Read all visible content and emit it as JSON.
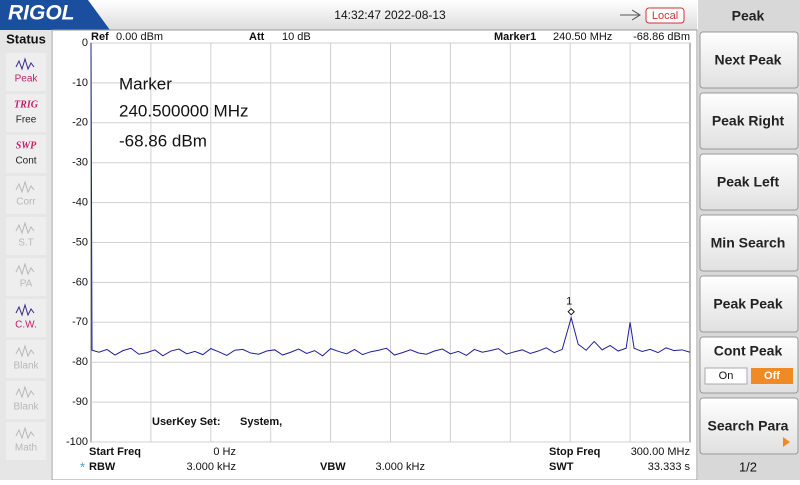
{
  "header": {
    "logo": "RIGOL",
    "datetime": "14:32:47 2022-08-13",
    "local": "Local"
  },
  "status": {
    "title": "Status",
    "items": [
      {
        "label": "Peak",
        "enabled": true
      },
      {
        "tag": "TRIG",
        "label": "Free",
        "enabled": true
      },
      {
        "tag": "SWP",
        "label": "Cont",
        "enabled": true
      },
      {
        "label": "Corr",
        "enabled": false
      },
      {
        "label": "S.T",
        "enabled": false
      },
      {
        "label": "PA",
        "enabled": false
      },
      {
        "label": "C.W.",
        "enabled": true
      },
      {
        "label": "Blank",
        "enabled": false
      },
      {
        "label": "Blank",
        "enabled": false
      },
      {
        "label": "Math",
        "enabled": false
      }
    ]
  },
  "top_info": {
    "ref_label": "Ref",
    "ref_value": "0.00 dBm",
    "att_label": "Att",
    "att_value": "10 dB",
    "marker_label": "Marker1",
    "marker_freq": "240.50 MHz",
    "marker_amp": "-68.86 dBm"
  },
  "marker_box": {
    "title": "Marker",
    "freq": "240.500000 MHz",
    "amp": "-68.86 dBm",
    "number": "1"
  },
  "userkey": {
    "label": "UserKey Set:",
    "value": "System,"
  },
  "bottom": {
    "start_label": "Start Freq",
    "start_value": "0 Hz",
    "stop_label": "Stop Freq",
    "stop_value": "300.00 MHz",
    "rbw_star": "*",
    "rbw_label": "RBW",
    "rbw_value": "3.000 kHz",
    "vbw_label": "VBW",
    "vbw_value": "3.000 kHz",
    "swt_label": "SWT",
    "swt_value": "33.333 s"
  },
  "menu": {
    "title": "Peak",
    "buttons": [
      "Next Peak",
      "Peak Right",
      "Peak Left",
      "Min Search",
      "Peak Peak"
    ],
    "cont_peak": {
      "label": "Cont Peak",
      "on": "On",
      "off": "Off"
    },
    "search_para": "Search Para",
    "page": "1/2"
  },
  "chart_data": {
    "type": "line",
    "color": "#1f1f9a",
    "x": [
      0,
      0.5,
      4,
      8,
      12,
      16,
      20,
      24,
      28,
      32,
      36,
      40,
      44,
      48,
      52,
      56,
      60,
      64,
      68,
      72,
      76,
      80,
      84,
      88,
      92,
      96,
      100,
      104,
      108,
      112,
      116,
      120,
      124,
      128,
      132,
      136,
      140,
      144,
      148,
      152,
      156,
      160,
      164,
      168,
      172,
      176,
      180,
      184,
      188,
      192,
      196,
      200,
      204,
      208,
      212,
      216,
      220,
      224,
      228,
      232,
      236,
      240.5,
      244,
      248,
      252,
      256,
      260,
      264,
      268,
      270,
      272,
      276,
      280,
      284,
      288,
      292,
      296,
      300
    ],
    "values": [
      0,
      -77,
      -77.5,
      -76.8,
      -78.2,
      -77.1,
      -76.5,
      -78,
      -77.6,
      -76.9,
      -78.4,
      -77.2,
      -76.7,
      -77.9,
      -77.3,
      -78.1,
      -76.6,
      -77.4,
      -78.3,
      -77,
      -76.8,
      -77.7,
      -78,
      -77.2,
      -76.9,
      -78.2,
      -77.5,
      -76.7,
      -77.8,
      -77.1,
      -78.4,
      -76.6,
      -77.3,
      -77.9,
      -76.8,
      -78.1,
      -77.4,
      -77,
      -76.5,
      -78.2,
      -77.6,
      -76.9,
      -77.7,
      -78,
      -77.2,
      -76.7,
      -77.9,
      -77.3,
      -78.3,
      -76.8,
      -77.5,
      -77.1,
      -76.6,
      -78,
      -77.4,
      -76.9,
      -77.8,
      -77.2,
      -76.4,
      -77.6,
      -76.8,
      -68.86,
      -75.5,
      -77,
      -74.8,
      -76.9,
      -75.8,
      -77.2,
      -76.5,
      -70,
      -76.5,
      -77.3,
      -76.8,
      -77.6,
      -76.4,
      -77.1,
      -76.9,
      -77.5
    ],
    "marker_index": 61,
    "xlim": [
      0,
      300
    ],
    "ylim": [
      -100,
      0
    ],
    "yticks": [
      0,
      -10,
      -20,
      -30,
      -40,
      -50,
      -60,
      -70,
      -80,
      -90,
      -100
    ],
    "grid": true
  }
}
